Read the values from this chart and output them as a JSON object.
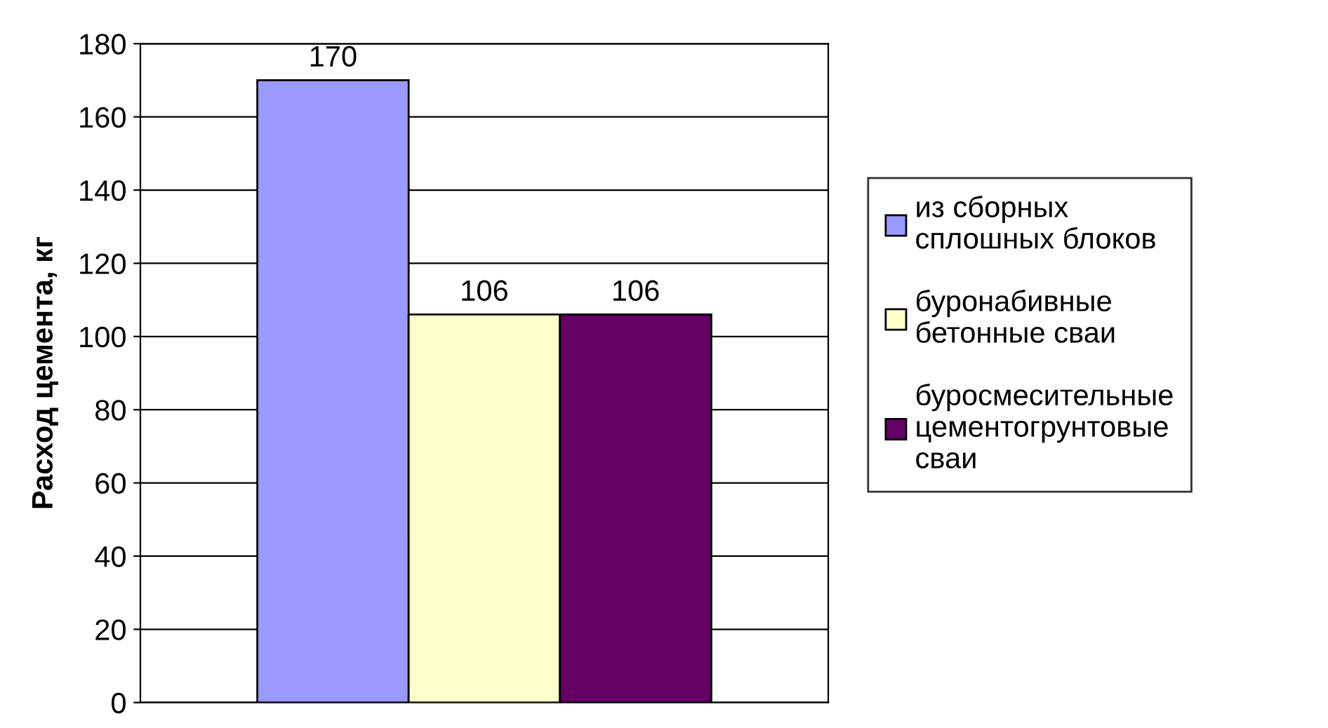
{
  "chart_data": {
    "type": "bar",
    "ylabel": "Расход цемента, кг",
    "categories": [
      null
    ],
    "series": [
      {
        "name": "из сборных\nсплошных блоков",
        "color": "#9999ff",
        "values": [
          170
        ]
      },
      {
        "name": "буронабивные\nбетонные сваи",
        "color": "#ffffcc",
        "values": [
          106
        ]
      },
      {
        "name": "буросмесительные\nцементогрунтовые\nсваи",
        "color": "#660066",
        "values": [
          106
        ]
      }
    ],
    "ylim": [
      0,
      180
    ],
    "yticks": [
      0,
      20,
      40,
      60,
      80,
      100,
      120,
      140,
      160,
      180
    ],
    "grid": "y",
    "legend": "right",
    "data_labels": true
  }
}
